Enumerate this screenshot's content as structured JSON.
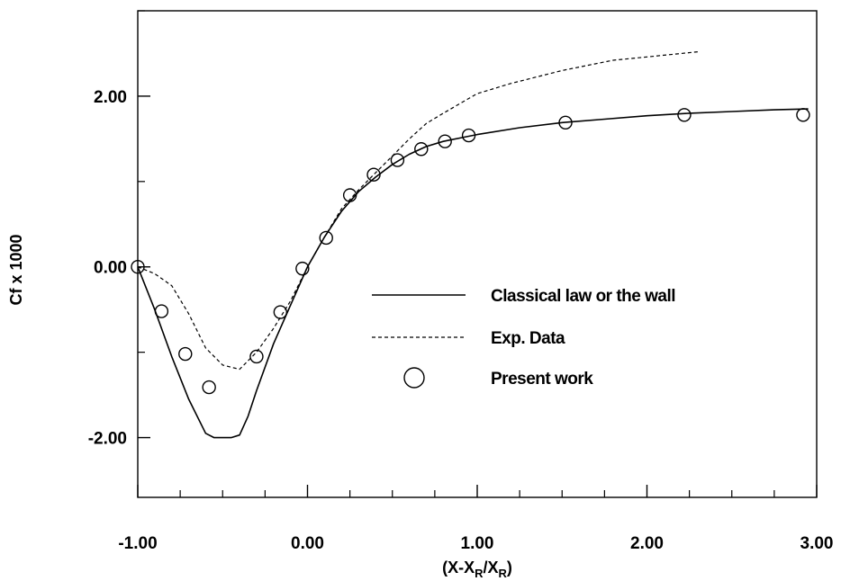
{
  "chart_data": {
    "type": "line",
    "title": "",
    "xlabel": "(X-X",
    "xlabel_sub1": "R",
    "xlabel_mid": "/X",
    "xlabel_sub2": "R",
    "xlabel_end": ")",
    "ylabel": "Cf x 1000",
    "xlim": [
      -1.0,
      3.0
    ],
    "ylim": [
      -2.7,
      3.0
    ],
    "x_ticks": [
      -1.0,
      0.0,
      1.0,
      2.0,
      3.0
    ],
    "x_tick_labels": [
      "-1.00",
      "0.00",
      "1.00",
      "2.00",
      "3.00"
    ],
    "x_minor_step": 0.25,
    "y_ticks": [
      -2.0,
      0.0,
      2.0
    ],
    "y_tick_labels": [
      "-2.00",
      "0.00",
      "2.00"
    ],
    "y_minor_step": 1.0,
    "grid": false,
    "legend_position": "center-right",
    "series": [
      {
        "name": "Classical law or the wall",
        "style": "solid",
        "x": [
          -1.0,
          -0.9,
          -0.8,
          -0.7,
          -0.6,
          -0.55,
          -0.5,
          -0.45,
          -0.4,
          -0.35,
          -0.3,
          -0.2,
          -0.1,
          0.0,
          0.1,
          0.2,
          0.3,
          0.4,
          0.5,
          0.6,
          0.7,
          0.8,
          0.9,
          1.0,
          1.25,
          1.5,
          1.75,
          2.0,
          2.25,
          2.5,
          2.75,
          2.95
        ],
        "y": [
          0.0,
          -0.5,
          -1.05,
          -1.55,
          -1.95,
          -2.0,
          -2.0,
          -2.0,
          -1.97,
          -1.75,
          -1.45,
          -0.9,
          -0.45,
          0.0,
          0.35,
          0.65,
          0.88,
          1.05,
          1.2,
          1.32,
          1.41,
          1.47,
          1.51,
          1.55,
          1.63,
          1.69,
          1.73,
          1.77,
          1.8,
          1.82,
          1.84,
          1.85
        ]
      },
      {
        "name": "Exp. Data",
        "style": "dashed",
        "x": [
          -1.0,
          -0.9,
          -0.8,
          -0.7,
          -0.6,
          -0.5,
          -0.4,
          -0.3,
          -0.2,
          -0.1,
          0.0,
          0.1,
          0.2,
          0.3,
          0.4,
          0.5,
          0.6,
          0.7,
          0.8,
          1.0,
          1.2,
          1.5,
          1.8,
          2.0,
          2.3
        ],
        "y": [
          0.0,
          -0.08,
          -0.22,
          -0.55,
          -0.95,
          -1.15,
          -1.2,
          -1.0,
          -0.72,
          -0.4,
          0.0,
          0.35,
          0.68,
          0.9,
          1.1,
          1.3,
          1.5,
          1.68,
          1.8,
          2.03,
          2.15,
          2.3,
          2.42,
          2.46,
          2.52
        ]
      },
      {
        "name": "Present work",
        "style": "markers",
        "marker": "circle",
        "x": [
          -1.0,
          -0.86,
          -0.72,
          -0.58,
          -0.3,
          -0.16,
          -0.03,
          0.11,
          0.25,
          0.39,
          0.53,
          0.67,
          0.81,
          0.95,
          1.52,
          2.22,
          2.92
        ],
        "y": [
          0.0,
          -0.52,
          -1.02,
          -1.41,
          -1.05,
          -0.53,
          -0.02,
          0.34,
          0.84,
          1.08,
          1.25,
          1.38,
          1.47,
          1.54,
          1.69,
          1.78,
          1.78
        ]
      }
    ]
  }
}
